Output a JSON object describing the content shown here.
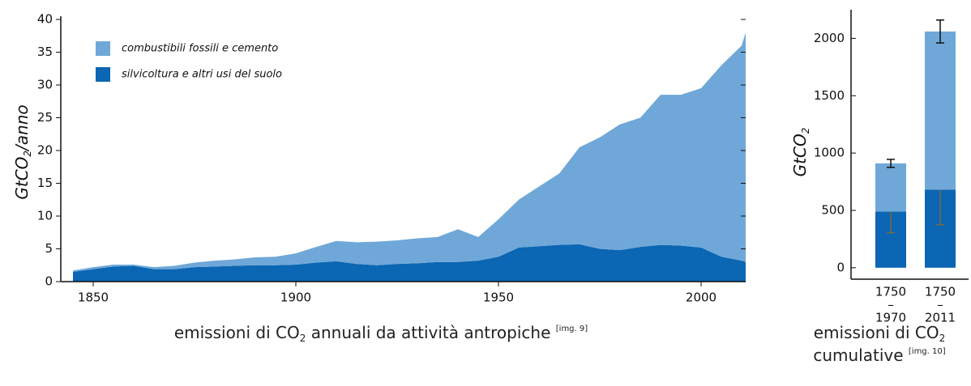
{
  "chart_data": [
    {
      "type": "area",
      "y_label": [
        "GtCO",
        "2",
        "/anno"
      ],
      "caption": [
        "emissioni di CO",
        "2",
        " annuali da attività antropiche ",
        "[img. 9]"
      ],
      "x": [
        1845,
        1850,
        1855,
        1860,
        1865,
        1870,
        1875,
        1880,
        1885,
        1890,
        1895,
        1900,
        1905,
        1910,
        1915,
        1920,
        1925,
        1930,
        1935,
        1940,
        1945,
        1950,
        1955,
        1960,
        1965,
        1970,
        1975,
        1980,
        1985,
        1990,
        1995,
        2000,
        2005,
        2010,
        2011
      ],
      "series": [
        {
          "name": "silvicoltura e altri usi del suolo",
          "color": "#0b66b3",
          "values": [
            1.5,
            1.9,
            2.3,
            2.4,
            1.9,
            1.9,
            2.2,
            2.3,
            2.4,
            2.5,
            2.5,
            2.6,
            2.9,
            3.1,
            2.7,
            2.5,
            2.7,
            2.8,
            3.0,
            3.0,
            3.2,
            3.8,
            5.2,
            5.4,
            5.6,
            5.7,
            5.0,
            4.8,
            5.3,
            5.6,
            5.5,
            5.2,
            3.8,
            3.2,
            3.0
          ]
        },
        {
          "name": "combustibili fossili e cemento",
          "color": "#6fa8d8",
          "values": [
            0.2,
            0.3,
            0.3,
            0.2,
            0.3,
            0.5,
            0.7,
            0.9,
            1.0,
            1.2,
            1.3,
            1.7,
            2.4,
            3.1,
            3.3,
            3.6,
            3.6,
            3.8,
            3.8,
            5.0,
            3.6,
            5.7,
            7.3,
            9.1,
            10.9,
            14.8,
            17.0,
            19.2,
            19.7,
            22.9,
            23.0,
            24.3,
            29.2,
            32.8,
            35.0
          ]
        }
      ],
      "xlim": [
        1842,
        2011
      ],
      "xticks": [
        1850,
        1900,
        1950,
        2000
      ],
      "ylim": [
        0,
        40
      ],
      "yticks": [
        0,
        5,
        10,
        15,
        20,
        25,
        30,
        35,
        40
      ],
      "legend": "upper left"
    },
    {
      "type": "bar",
      "y_label": [
        "GtCO",
        "2"
      ],
      "caption": [
        [
          "emissioni di CO",
          "2"
        ],
        [
          "cumulative ",
          "[img. 10]"
        ]
      ],
      "categories": [
        [
          "1750",
          "–",
          "1970"
        ],
        [
          "1750",
          "–",
          "2011"
        ]
      ],
      "series": [
        {
          "name": "silvicoltura e altri usi del suolo",
          "color": "#0b66b3",
          "error_color": "#7a6a3a",
          "values": [
            490,
            680
          ],
          "errors": [
            185,
            305
          ]
        },
        {
          "name": "combustibili fossili e cemento",
          "color": "#6fa8d8",
          "error_color": "#111111",
          "values": [
            420,
            1380
          ],
          "errors": [
            35,
            100
          ]
        }
      ],
      "ylim": [
        -100,
        2250
      ],
      "yticks": [
        0,
        500,
        1000,
        1500,
        2000
      ]
    }
  ]
}
